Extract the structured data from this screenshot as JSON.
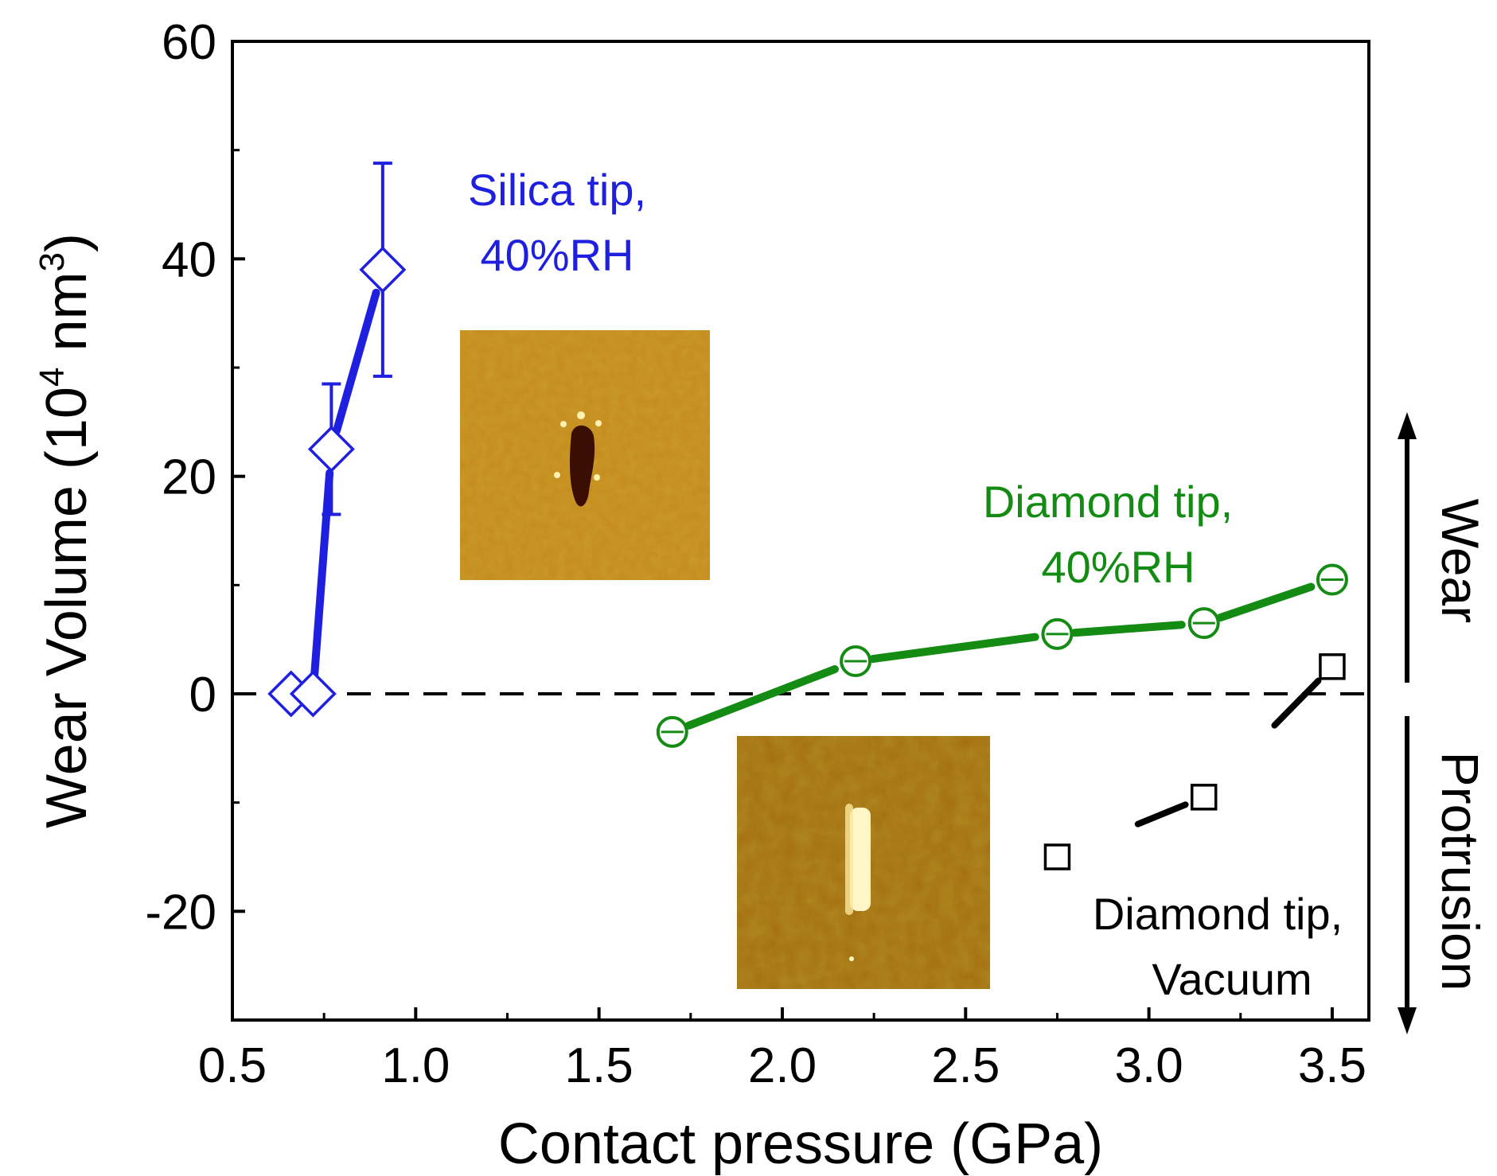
{
  "chart_data": {
    "type": "scatter",
    "title": "",
    "xlabel": "Contact pressure (GPa)",
    "ylabel_main": "Wear Volume (10",
    "ylabel_exp1": "4",
    "ylabel_mid": " nm",
    "ylabel_exp2": "3",
    "ylabel_end": ")",
    "xlim": [
      0.5,
      3.6
    ],
    "ylim": [
      -30,
      60
    ],
    "x_ticks": [
      "0.5",
      "1.0",
      "1.5",
      "2.0",
      "2.5",
      "3.0",
      "3.5"
    ],
    "y_ticks": [
      "-20",
      "0",
      "20",
      "40",
      "60"
    ],
    "series": [
      {
        "name": "Silica tip, 40%RH",
        "label_line1": "Silica tip,",
        "label_line2": "40%RH",
        "color": "#1f1fe0",
        "marker": "diamond",
        "x": [
          0.66,
          0.72,
          0.77,
          0.91
        ],
        "y": [
          0,
          0,
          22.5,
          39
        ],
        "err": [
          0,
          0,
          6,
          9.8
        ]
      },
      {
        "name": "Diamond tip, 40%RH",
        "label_line1": "Diamond tip,",
        "label_line2": "40%RH",
        "color": "#148c14",
        "marker": "circle",
        "x": [
          1.7,
          2.2,
          2.75,
          3.15,
          3.5
        ],
        "y": [
          -3.5,
          3,
          5.5,
          6.5,
          10.5
        ],
        "err": [
          1,
          1,
          1,
          1,
          1
        ]
      },
      {
        "name": "Diamond tip, Vacuum",
        "label_line1": "Diamond tip,",
        "label_line2": "Vacuum",
        "color": "#000000",
        "marker": "square",
        "x": [
          2.75,
          3.15,
          3.5
        ],
        "y": [
          -15,
          -9.5,
          2.5
        ],
        "err": [
          1,
          0.8,
          1
        ]
      }
    ],
    "side_labels": {
      "up": "Wear",
      "down": "Protrusion"
    },
    "insets": [
      "AFM image of wear scar",
      "AFM image of protrusion"
    ]
  }
}
